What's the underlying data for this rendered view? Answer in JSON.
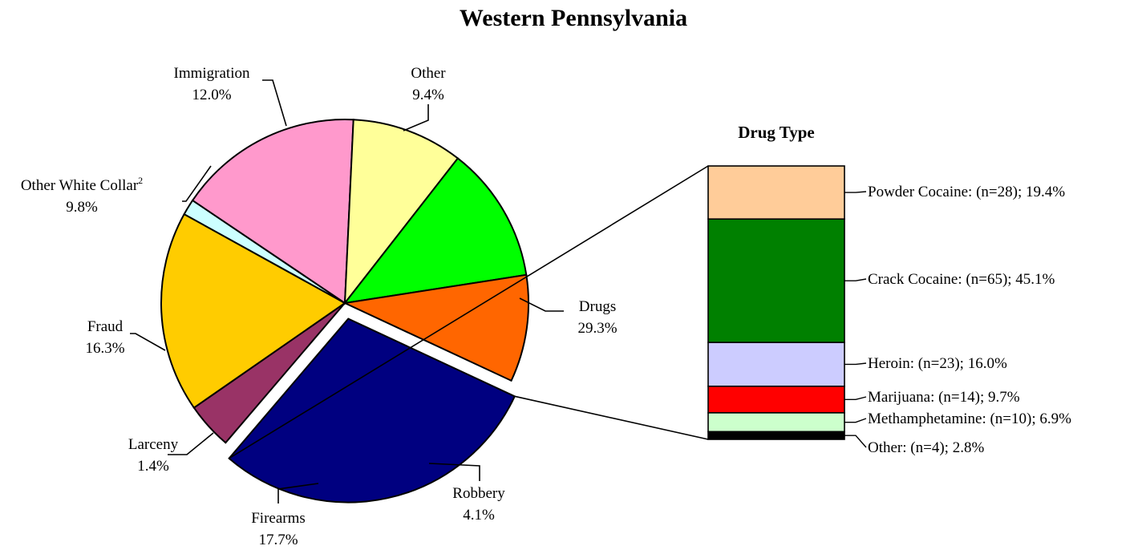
{
  "chart_data": [
    {
      "type": "pie",
      "title": "Western Pennsylvania",
      "slices": [
        {
          "label": "Drugs",
          "value": 29.3,
          "display": "29.3%",
          "color": "#000080",
          "exploded": true
        },
        {
          "label": "Robbery",
          "value": 4.1,
          "display": "4.1%",
          "color": "#993366"
        },
        {
          "label": "Firearms",
          "value": 17.7,
          "display": "17.7%",
          "color": "#FFCC00"
        },
        {
          "label": "Larceny",
          "value": 1.4,
          "display": "1.4%",
          "color": "#CCFFFF"
        },
        {
          "label": "Fraud",
          "value": 16.3,
          "display": "16.3%",
          "color": "#FF99CC"
        },
        {
          "label": "Other White Collar",
          "label_sup": "2",
          "value": 9.8,
          "display": "9.8%",
          "color": "#FFFF99"
        },
        {
          "label": "Immigration",
          "value": 12.0,
          "display": "12.0%",
          "color": "#00FF00"
        },
        {
          "label": "Other",
          "value": 9.4,
          "display": "9.4%",
          "color": "#FF6600"
        }
      ]
    },
    {
      "type": "bar",
      "stacked": true,
      "title": "Drug Type",
      "segments": [
        {
          "label": "Powder Cocaine: (n=28); 19.4%",
          "n": 28,
          "value": 19.4,
          "color": "#FFCC99"
        },
        {
          "label": "Crack Cocaine: (n=65); 45.1%",
          "n": 65,
          "value": 45.1,
          "color": "#008000"
        },
        {
          "label": "Heroin: (n=23); 16.0%",
          "n": 23,
          "value": 16.0,
          "color": "#CCCCFF"
        },
        {
          "label": "Marijuana: (n=14); 9.7%",
          "n": 14,
          "value": 9.7,
          "color": "#FF0000"
        },
        {
          "label": "Methamphetamine: (n=10); 6.9%",
          "n": 10,
          "value": 6.9,
          "color": "#CCFFCC"
        },
        {
          "label": "Other: (n=4); 2.8%",
          "n": 4,
          "value": 2.8,
          "color": "#000000"
        }
      ]
    }
  ]
}
